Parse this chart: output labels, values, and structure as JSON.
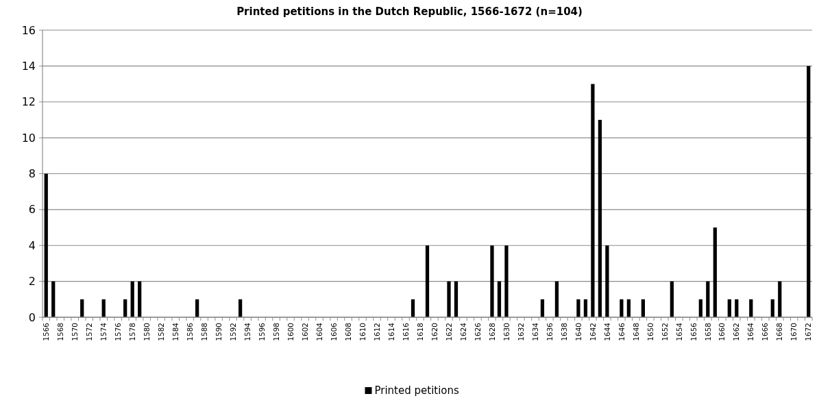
{
  "chart_data": {
    "type": "bar",
    "title": "Printed petitions in the Dutch Republic, 1566-1672 (n=104)",
    "categories": [
      "1566",
      null,
      "1568",
      null,
      "1570",
      null,
      "1572",
      null,
      "1574",
      null,
      "1576",
      null,
      "1578",
      null,
      "1580",
      null,
      "1582",
      null,
      "1584",
      null,
      "1586",
      null,
      "1588",
      null,
      "1590",
      null,
      "1592",
      null,
      "1594",
      null,
      "1596",
      null,
      "1598",
      null,
      "1600",
      null,
      "1602",
      null,
      "1604",
      null,
      "1606",
      null,
      "1608",
      null,
      "1610",
      null,
      "1612",
      null,
      "1614",
      null,
      "1616",
      null,
      "1618",
      null,
      "1620",
      null,
      "1622",
      null,
      "1624",
      null,
      "1626",
      null,
      "1628",
      null,
      "1630",
      null,
      "1632",
      null,
      "1634",
      null,
      "1636",
      null,
      "1638",
      null,
      "1640",
      null,
      "1642",
      null,
      "1644",
      null,
      "1646",
      null,
      "1648",
      null,
      "1650",
      null,
      "1652",
      null,
      "1654",
      null,
      "1656",
      null,
      "1658",
      null,
      "1660",
      null,
      "1662",
      null,
      "1664",
      null,
      "1666",
      null,
      "1668",
      null,
      "1670",
      null,
      "1672"
    ],
    "series": [
      {
        "name": "Printed petitions",
        "color": "#000000",
        "values": [
          8,
          2,
          0,
          0,
          0,
          1,
          0,
          0,
          1,
          0,
          0,
          1,
          2,
          2,
          0,
          0,
          0,
          0,
          0,
          0,
          0,
          1,
          0,
          0,
          0,
          0,
          0,
          1,
          0,
          0,
          0,
          0,
          0,
          0,
          0,
          0,
          0,
          0,
          0,
          0,
          0,
          0,
          0,
          0,
          0,
          0,
          0,
          0,
          0,
          0,
          0,
          1,
          0,
          4,
          0,
          0,
          2,
          2,
          0,
          0,
          0,
          0,
          4,
          2,
          4,
          0,
          0,
          0,
          0,
          1,
          0,
          2,
          0,
          0,
          1,
          1,
          13,
          11,
          4,
          0,
          1,
          1,
          0,
          1,
          0,
          0,
          0,
          2,
          0,
          0,
          0,
          1,
          2,
          5,
          0,
          1,
          1,
          0,
          1,
          0,
          0,
          1,
          2,
          0,
          0,
          0,
          14
        ]
      }
    ],
    "ylim": [
      0,
      16
    ],
    "yticks": [
      0,
      2,
      4,
      6,
      8,
      10,
      12,
      14,
      16
    ],
    "grid": "y",
    "legend": "bottom"
  }
}
